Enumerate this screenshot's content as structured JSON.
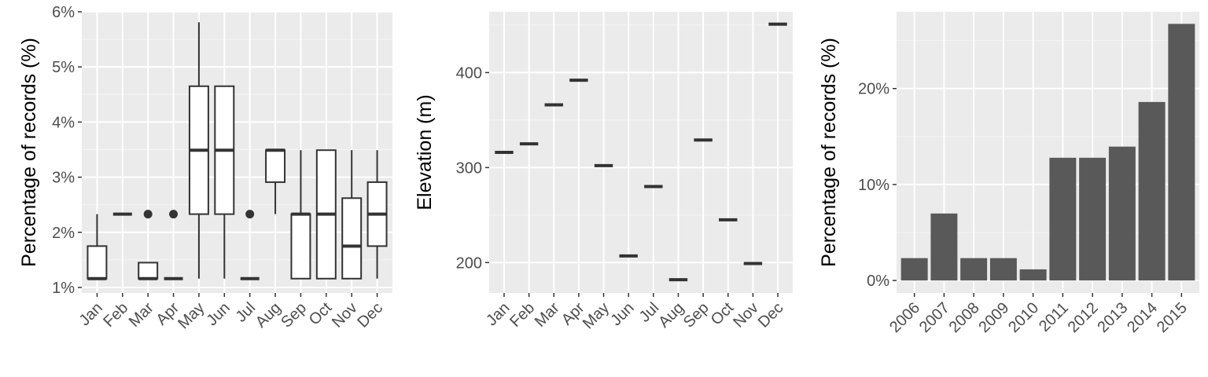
{
  "colors": {
    "panel_background": "#EBEBEB",
    "grid_major": "#FFFFFF",
    "grid_minor": "#F5F5F5",
    "box_fill": "#FFFFFF",
    "box_line": "#333333",
    "bar_fill": "#595959",
    "tick_text": "#4D4D4D"
  },
  "chart_data": [
    {
      "type": "boxplot",
      "title": "",
      "xlabel": "",
      "ylabel": "Percentage of records (%)",
      "ylim": [
        0.9,
        6.0
      ],
      "yticks": [
        "1%",
        "2%",
        "3%",
        "4%",
        "5%",
        "6%"
      ],
      "grid": true,
      "categories": [
        "Jan",
        "Feb",
        "Mar",
        "Apr",
        "May",
        "Jun",
        "Jul",
        "Aug",
        "Sep",
        "Oct",
        "Nov",
        "Dec"
      ],
      "boxes": [
        {
          "min": 1.16,
          "q1": 1.16,
          "median": 1.16,
          "q3": 1.75,
          "max": 2.33,
          "outliers": []
        },
        {
          "min": 2.33,
          "q1": 2.33,
          "median": 2.33,
          "q3": 2.33,
          "max": 2.33,
          "outliers": []
        },
        {
          "min": 1.16,
          "q1": 1.16,
          "median": 1.16,
          "q3": 1.45,
          "max": 1.45,
          "outliers": [
            2.33
          ]
        },
        {
          "min": 1.16,
          "q1": 1.16,
          "median": 1.16,
          "q3": 1.16,
          "max": 1.16,
          "outliers": [
            2.33
          ]
        },
        {
          "min": 1.16,
          "q1": 2.33,
          "median": 3.49,
          "q3": 4.65,
          "max": 5.81,
          "outliers": []
        },
        {
          "min": 1.16,
          "q1": 2.33,
          "median": 3.49,
          "q3": 4.65,
          "max": 4.65,
          "outliers": []
        },
        {
          "min": 1.16,
          "q1": 1.16,
          "median": 1.16,
          "q3": 1.16,
          "max": 1.16,
          "outliers": [
            2.33
          ]
        },
        {
          "min": 2.33,
          "q1": 2.91,
          "median": 3.49,
          "q3": 3.49,
          "max": 3.49,
          "outliers": []
        },
        {
          "min": 1.16,
          "q1": 1.16,
          "median": 2.33,
          "q3": 2.33,
          "max": 3.49,
          "outliers": []
        },
        {
          "min": 1.16,
          "q1": 1.16,
          "median": 2.33,
          "q3": 3.49,
          "max": 3.49,
          "outliers": []
        },
        {
          "min": 1.16,
          "q1": 1.16,
          "median": 1.75,
          "q3": 2.62,
          "max": 3.49,
          "outliers": []
        },
        {
          "min": 1.16,
          "q1": 1.75,
          "median": 2.33,
          "q3": 2.91,
          "max": 3.49,
          "outliers": []
        }
      ]
    },
    {
      "type": "boxplot",
      "title": "",
      "xlabel": "",
      "ylabel": "Elevation (m)",
      "ylim": [
        168,
        464
      ],
      "yticks": [
        "200",
        "300",
        "400"
      ],
      "grid": true,
      "categories": [
        "Jan",
        "Feb",
        "Mar",
        "Apr",
        "May",
        "Jun",
        "Jul",
        "Aug",
        "Sep",
        "Oct",
        "Nov",
        "Dec"
      ],
      "values": [
        316,
        325,
        366,
        392,
        302,
        207,
        280,
        182,
        329,
        245,
        199,
        451
      ]
    },
    {
      "type": "bar",
      "title": "",
      "xlabel": "",
      "ylabel": "Percentage of records (%)",
      "ylim": [
        -1.3,
        28
      ],
      "yticks": [
        "0%",
        "10%",
        "20%"
      ],
      "grid": true,
      "categories": [
        "2006",
        "2007",
        "2008",
        "2009",
        "2010",
        "2011",
        "2012",
        "2013",
        "2014",
        "2015"
      ],
      "values": [
        2.33,
        6.98,
        2.33,
        2.33,
        1.16,
        12.79,
        12.79,
        13.95,
        18.6,
        26.74
      ]
    }
  ]
}
